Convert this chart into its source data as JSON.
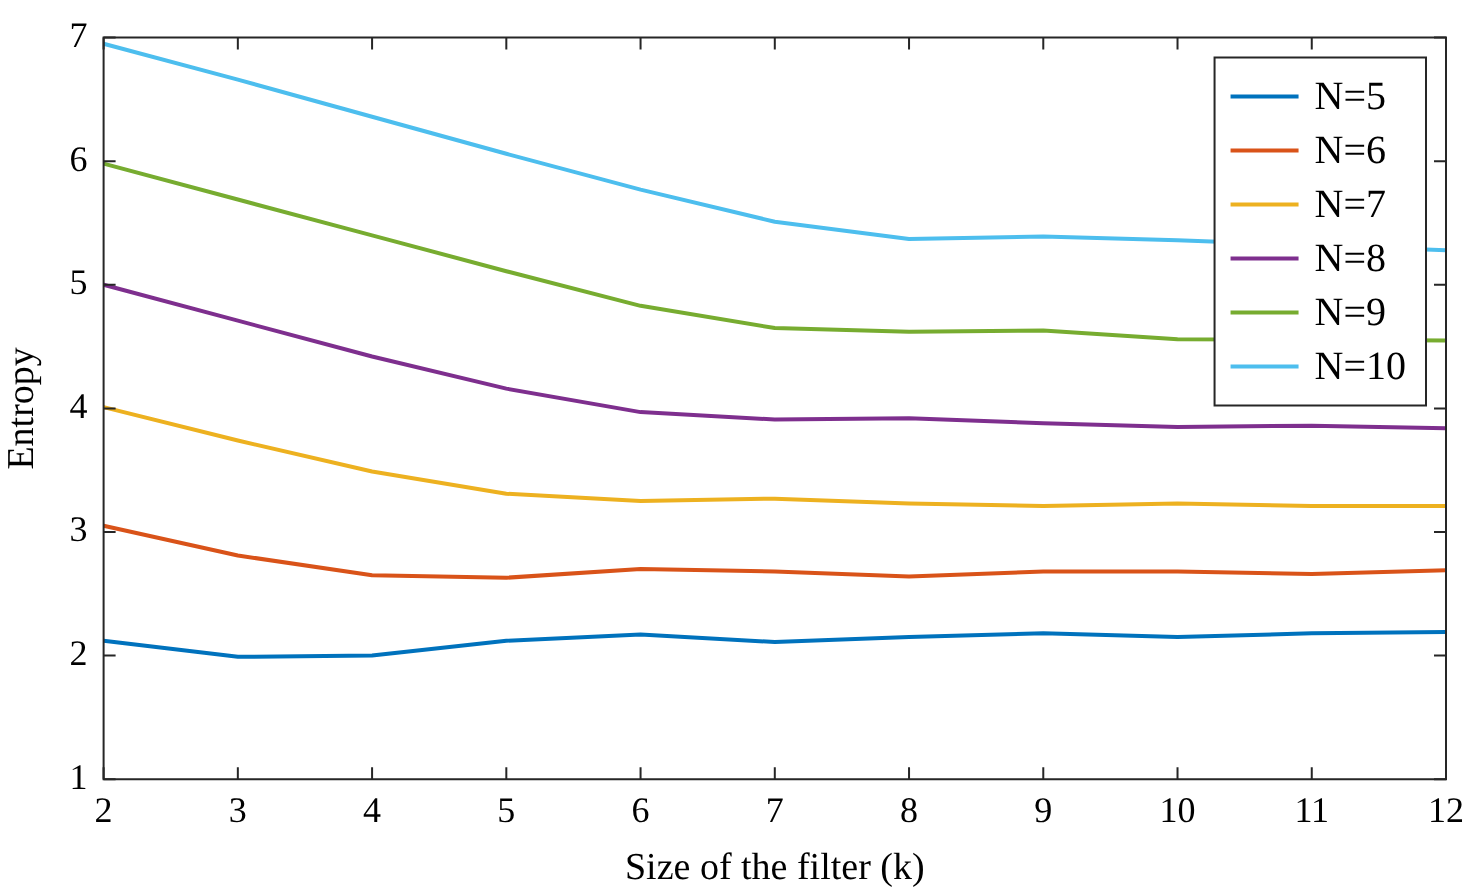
{
  "chart_data": {
    "type": "line",
    "xlabel": "Size of the filter (k)",
    "ylabel": "Entropy",
    "x": [
      2,
      3,
      4,
      5,
      6,
      7,
      8,
      9,
      10,
      11,
      12
    ],
    "xlim": [
      2,
      12
    ],
    "xticks": [
      2,
      3,
      4,
      5,
      6,
      7,
      8,
      9,
      10,
      11,
      12
    ],
    "ylim": [
      1,
      7
    ],
    "yticks": [
      1,
      2,
      3,
      4,
      5,
      6,
      7
    ],
    "grid": false,
    "legend": "top right",
    "marker": "none",
    "line_style": "solid",
    "series": [
      {
        "name": "N=5",
        "color": "#0072bd",
        "values": [
          2.12,
          1.99,
          2.0,
          2.12,
          2.17,
          2.11,
          2.15,
          2.18,
          2.15,
          2.18,
          2.19
        ]
      },
      {
        "name": "N=6",
        "color": "#d95319",
        "values": [
          3.05,
          2.81,
          2.65,
          2.63,
          2.7,
          2.68,
          2.64,
          2.68,
          2.68,
          2.66,
          2.69
        ]
      },
      {
        "name": "N=7",
        "color": "#edb120",
        "values": [
          4.01,
          3.74,
          3.49,
          3.31,
          3.25,
          3.27,
          3.23,
          3.21,
          3.23,
          3.21,
          3.21
        ]
      },
      {
        "name": "N=8",
        "color": "#7e2f8e",
        "values": [
          5.0,
          4.71,
          4.42,
          4.16,
          3.97,
          3.91,
          3.92,
          3.88,
          3.85,
          3.86,
          3.84
        ]
      },
      {
        "name": "N=9",
        "color": "#77ac30",
        "values": [
          5.98,
          5.69,
          5.4,
          5.11,
          4.83,
          4.65,
          4.62,
          4.63,
          4.56,
          null,
          4.55
        ]
      },
      {
        "name": "N=10",
        "color": "#4dbeee",
        "values": [
          6.95,
          6.66,
          6.36,
          6.06,
          5.77,
          5.51,
          5.37,
          5.39,
          5.36,
          null,
          5.28
        ]
      }
    ]
  }
}
